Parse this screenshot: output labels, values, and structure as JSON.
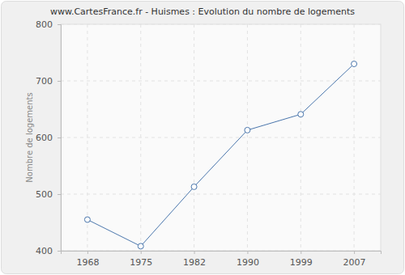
{
  "chart_data": {
    "type": "line",
    "title": "www.CartesFrance.fr - Huismes : Evolution du nombre de logements",
    "y_label": "Nombre de logements",
    "categories": [
      "1968",
      "1975",
      "1982",
      "1990",
      "1999",
      "2007"
    ],
    "values": [
      455,
      408,
      513,
      613,
      641,
      730
    ],
    "color": "#4a76ac",
    "marker": "circle",
    "ylim": [
      400,
      800
    ],
    "yticks": [
      400,
      500,
      600,
      700,
      800
    ],
    "grid": true
  }
}
